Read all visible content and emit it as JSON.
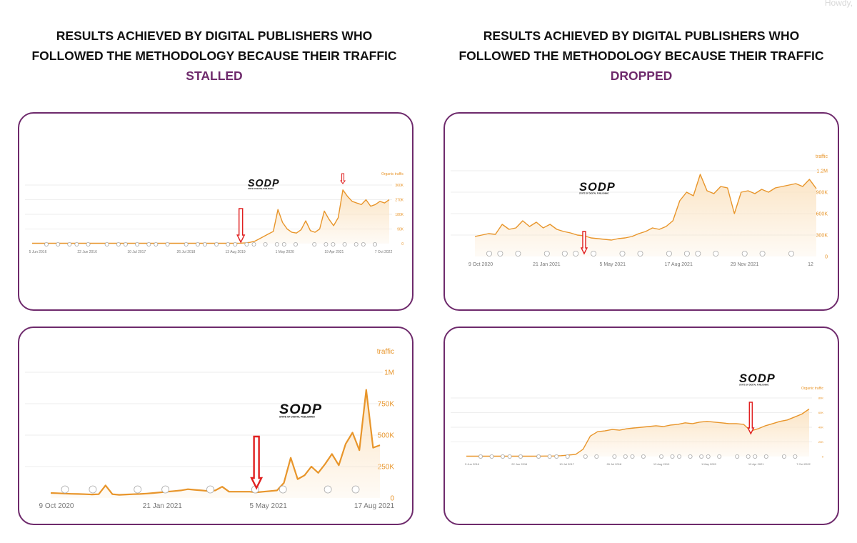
{
  "header": {
    "corner_text": "Howdy, "
  },
  "columns": [
    {
      "heading_line1": "RESULTS ACHIEVED BY DIGITAL PUBLISHERS WHO",
      "heading_line2": "FOLLOWED THE METHODOLOGY BECAUSE THEIR TRAFFIC",
      "heading_accent": "STALLED"
    },
    {
      "heading_line1": "RESULTS ACHIEVED BY DIGITAL PUBLISHERS WHO",
      "heading_line2": "FOLLOWED THE METHODOLOGY BECAUSE THEIR TRAFFIC",
      "heading_accent": "DROPPED"
    }
  ],
  "colors": {
    "accent": "#6e2a6c",
    "line": "#e8952a",
    "area": "#fbe3c2",
    "arrow": "#e02020",
    "grid": "#eeeeee"
  },
  "logo": {
    "name": "SODP",
    "tagline": "STATE OF DIGITAL PUBLISHING"
  },
  "chart_data": [
    {
      "type": "area",
      "ylabel": "Organic traffic",
      "x_ticks": [
        "5 Jun 2016",
        "22 Jun 2016",
        "10 Jul 2017",
        "26 Jul 2018",
        "13 Aug 2019",
        "1 May 2020",
        "19 Apr 2021",
        "7 Oct 2022"
      ],
      "y_ticks": [
        "0",
        "90K",
        "180K",
        "270K",
        "360K"
      ],
      "ylim": [
        0,
        360000
      ],
      "marker": "annotation",
      "series": [
        {
          "values": [
            2000,
            2000,
            2000,
            2000,
            2000,
            2000,
            2000,
            2000,
            2000,
            2000,
            2000,
            2000,
            2000,
            2000,
            2000,
            2000,
            2000,
            2000,
            2000,
            2000,
            2000,
            2000,
            2000,
            2000,
            2000,
            2000,
            2000,
            2000,
            2000,
            2000,
            2000,
            2000,
            2000,
            2000,
            2000,
            2000,
            2000,
            2000,
            2000,
            2000,
            2000,
            2000,
            2000,
            2000,
            2000,
            3000,
            5000,
            8000,
            15000,
            30000,
            45000,
            60000,
            75000,
            210000,
            130000,
            90000,
            70000,
            65000,
            85000,
            140000,
            80000,
            70000,
            90000,
            200000,
            150000,
            110000,
            160000,
            330000,
            290000,
            260000,
            250000,
            240000,
            270000,
            230000,
            240000,
            260000,
            250000,
            270000
          ]
        }
      ],
      "event_markers": 31,
      "annotation_arrow_x_index": 45
    },
    {
      "type": "area",
      "ylabel": "traffic",
      "x_ticks": [
        "9 Oct 2020",
        "21 Jan 2021",
        "5 May 2021",
        "17 Aug 2021",
        "29 Nov 2021",
        "12"
      ],
      "y_ticks": [
        "0",
        "300K",
        "600K",
        "900K",
        "1.2M"
      ],
      "ylim": [
        0,
        1200000
      ],
      "marker": "annotation",
      "series": [
        {
          "values": [
            280000,
            300000,
            320000,
            310000,
            450000,
            380000,
            400000,
            500000,
            420000,
            480000,
            400000,
            450000,
            380000,
            350000,
            330000,
            300000,
            290000,
            260000,
            250000,
            240000,
            230000,
            250000,
            260000,
            280000,
            320000,
            350000,
            400000,
            380000,
            420000,
            500000,
            780000,
            900000,
            850000,
            1150000,
            920000,
            880000,
            980000,
            960000,
            600000,
            900000,
            920000,
            880000,
            940000,
            900000,
            960000,
            980000,
            1000000,
            1020000,
            980000,
            1080000,
            950000
          ]
        }
      ],
      "event_markers": 16,
      "annotation_arrow_x_index": 16
    },
    {
      "type": "area",
      "ylabel": "traffic",
      "x_ticks": [
        "9 Oct 2020",
        "21 Jan 2021",
        "5 May 2021",
        "17 Aug 2021"
      ],
      "y_ticks": [
        "0",
        "250K",
        "500K",
        "750K",
        "1M"
      ],
      "ylim": [
        0,
        1000000
      ],
      "marker": "annotation",
      "series": [
        {
          "values": [
            40000,
            38000,
            35000,
            33000,
            32000,
            30000,
            28000,
            30000,
            100000,
            30000,
            25000,
            28000,
            30000,
            32000,
            35000,
            40000,
            45000,
            50000,
            55000,
            60000,
            70000,
            65000,
            60000,
            55000,
            60000,
            90000,
            50000,
            50000,
            50000,
            50000,
            45000,
            50000,
            55000,
            60000,
            120000,
            320000,
            150000,
            180000,
            250000,
            200000,
            270000,
            350000,
            260000,
            430000,
            520000,
            380000,
            860000,
            400000,
            420000
          ]
        }
      ],
      "event_markers": 9,
      "annotation_arrow_x_index": 30
    },
    {
      "type": "area",
      "ylabel": "Organic traffic",
      "x_ticks": [
        "5 Jun 2016",
        "22 Jun 2016",
        "10 Jul 2017",
        "26 Jul 2018",
        "13 Aug 2019",
        "1 May 2020",
        "19 Apr 2021",
        "7 Oct 2022"
      ],
      "y_ticks": [
        "0",
        "20K",
        "40K",
        "60K",
        "80K"
      ],
      "ylim": [
        0,
        80000
      ],
      "marker": "annotation",
      "series": [
        {
          "values": [
            500,
            500,
            500,
            500,
            500,
            500,
            500,
            500,
            500,
            500,
            600,
            700,
            800,
            1200,
            2000,
            3000,
            10000,
            28000,
            34000,
            35000,
            37000,
            36000,
            38000,
            39000,
            40000,
            41000,
            42000,
            41000,
            43000,
            44000,
            46000,
            45000,
            47000,
            48000,
            47000,
            46000,
            45000,
            45000,
            44000,
            35000,
            38000,
            42000,
            45000,
            48000,
            50000,
            54000,
            58000,
            65000
          ]
        }
      ],
      "event_markers": 28,
      "annotation_arrow_x_index": 39
    }
  ]
}
